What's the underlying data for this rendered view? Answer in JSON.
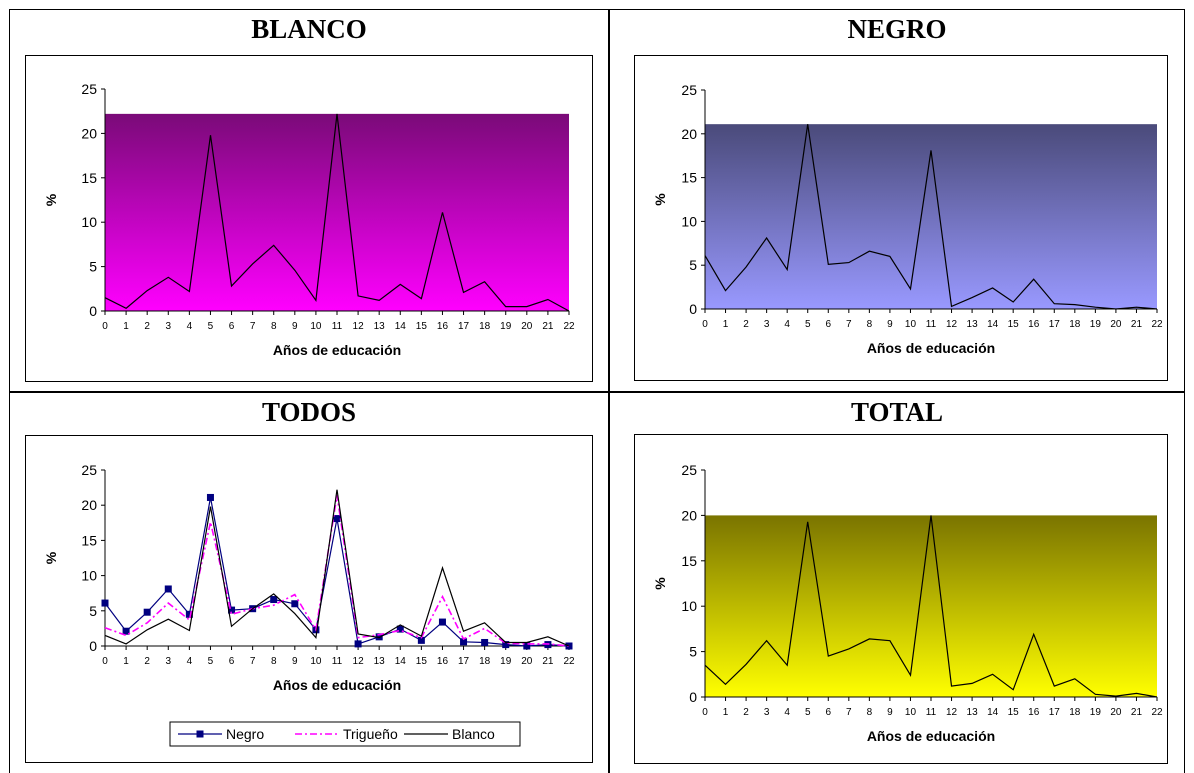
{
  "panels": [
    {
      "title": "BLANCO"
    },
    {
      "title": "NEGRO"
    },
    {
      "title": "TODOS"
    },
    {
      "title": "TOTAL"
    }
  ],
  "colors": {
    "blanco_top": "#7a0a78",
    "blanco_bottom": "#ff00ff",
    "negro_top": "#4a4a7a",
    "negro_bottom": "#9999ff",
    "total_top": "#7a7400",
    "total_bottom": "#ffff00",
    "series_negro": "#000080",
    "series_trigueno": "#ff00ff",
    "series_blanco": "#000000"
  },
  "chart_data": [
    {
      "type": "line",
      "title": "BLANCO",
      "xlabel": "Años de educación",
      "ylabel": "%",
      "ylim": [
        0,
        25
      ],
      "yticks": [
        0,
        5,
        10,
        15,
        20,
        25
      ],
      "x": [
        0,
        1,
        2,
        3,
        4,
        5,
        6,
        7,
        8,
        9,
        10,
        11,
        12,
        13,
        14,
        15,
        16,
        17,
        18,
        19,
        20,
        21,
        22
      ],
      "series": [
        {
          "values": [
            1.5,
            0.3,
            2.3,
            3.8,
            2.2,
            19.8,
            2.8,
            5.3,
            7.4,
            4.6,
            1.2,
            22.2,
            1.7,
            1.2,
            3.0,
            1.4,
            11.1,
            2.1,
            3.3,
            0.5,
            0.5,
            1.3,
            0.0
          ]
        }
      ],
      "area_fill_level": 22.2
    },
    {
      "type": "line",
      "title": "NEGRO",
      "xlabel": "Años de educación",
      "ylabel": "%",
      "ylim": [
        0,
        25
      ],
      "yticks": [
        0,
        5,
        10,
        15,
        20,
        25
      ],
      "x": [
        0,
        1,
        2,
        3,
        4,
        5,
        6,
        7,
        8,
        9,
        10,
        11,
        12,
        13,
        14,
        15,
        16,
        17,
        18,
        19,
        20,
        21,
        22
      ],
      "series": [
        {
          "values": [
            6.1,
            2.1,
            4.8,
            8.1,
            4.5,
            21.1,
            5.1,
            5.3,
            6.6,
            6.0,
            2.3,
            18.1,
            0.3,
            1.3,
            2.4,
            0.8,
            3.4,
            0.6,
            0.5,
            0.2,
            0.0,
            0.2,
            0.0
          ]
        }
      ],
      "area_fill_level": 21.1
    },
    {
      "type": "line",
      "title": "TODOS",
      "xlabel": "Años de educación",
      "ylabel": "%",
      "ylim": [
        0,
        25
      ],
      "yticks": [
        0,
        5,
        10,
        15,
        20,
        25
      ],
      "x": [
        0,
        1,
        2,
        3,
        4,
        5,
        6,
        7,
        8,
        9,
        10,
        11,
        12,
        13,
        14,
        15,
        16,
        17,
        18,
        19,
        20,
        21,
        22
      ],
      "legend": [
        "Negro",
        "Trigueño",
        "Blanco"
      ],
      "legend_position": "bottom",
      "series": [
        {
          "name": "Negro",
          "values": [
            6.1,
            2.1,
            4.8,
            8.1,
            4.5,
            21.1,
            5.1,
            5.3,
            6.6,
            6.0,
            2.3,
            18.1,
            0.3,
            1.3,
            2.4,
            0.8,
            3.4,
            0.6,
            0.5,
            0.2,
            0.0,
            0.2,
            0.0
          ]
        },
        {
          "name": "Trigueño",
          "values": [
            2.6,
            1.5,
            3.3,
            6.1,
            3.7,
            17.6,
            4.5,
            5.3,
            5.8,
            7.3,
            2.3,
            21.4,
            1.2,
            1.6,
            2.2,
            1.2,
            7.0,
            1.0,
            2.5,
            0.4,
            0.3,
            0.3,
            0.0
          ]
        },
        {
          "name": "Blanco",
          "values": [
            1.5,
            0.3,
            2.3,
            3.8,
            2.2,
            19.8,
            2.8,
            5.3,
            7.4,
            4.6,
            1.2,
            22.2,
            1.7,
            1.2,
            3.0,
            1.4,
            11.1,
            2.1,
            3.3,
            0.5,
            0.5,
            1.3,
            0.0
          ]
        }
      ]
    },
    {
      "type": "line",
      "title": "TOTAL",
      "xlabel": "Años de educación",
      "ylabel": "%",
      "ylim": [
        0,
        25
      ],
      "yticks": [
        0,
        5,
        10,
        15,
        20,
        25
      ],
      "x": [
        0,
        1,
        2,
        3,
        4,
        5,
        6,
        7,
        8,
        9,
        10,
        11,
        12,
        13,
        14,
        15,
        16,
        17,
        18,
        19,
        20,
        21,
        22
      ],
      "series": [
        {
          "values": [
            3.5,
            1.4,
            3.6,
            6.2,
            3.5,
            19.3,
            4.5,
            5.3,
            6.4,
            6.2,
            2.4,
            20.0,
            1.2,
            1.5,
            2.5,
            0.8,
            6.9,
            1.2,
            2.0,
            0.3,
            0.1,
            0.4,
            0.0
          ]
        }
      ],
      "area_fill_level": 20.0
    }
  ]
}
